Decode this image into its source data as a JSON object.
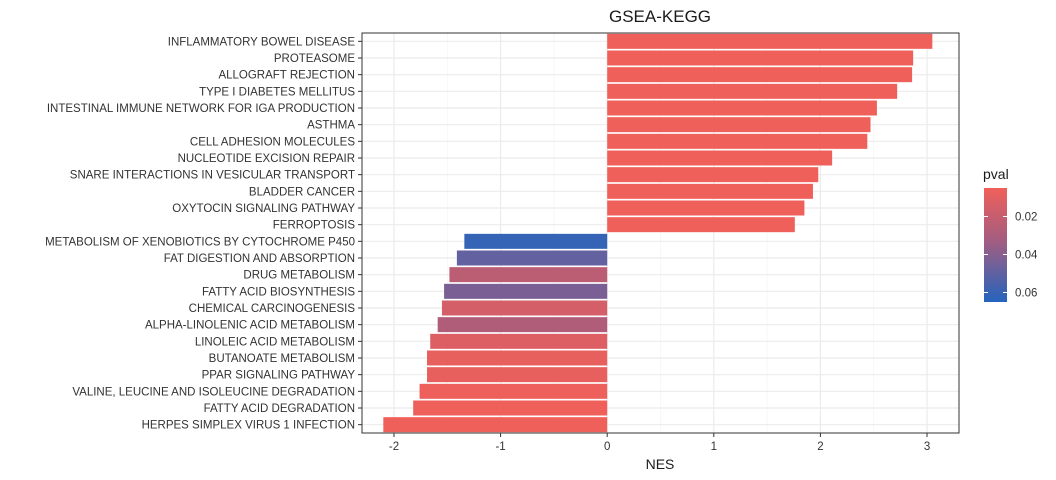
{
  "chart_data": {
    "type": "bar",
    "orientation": "horizontal",
    "title": "GSEA-KEGG",
    "xlabel": "NES",
    "ylabel": "",
    "xlim": [
      -2.3,
      3.3
    ],
    "xticks": [
      -2,
      -1,
      0,
      1,
      2,
      3
    ],
    "grid": true,
    "legend_position": "right",
    "legend": {
      "title": "pval",
      "ticks": [
        0.02,
        0.04,
        0.06
      ],
      "range": [
        0.005,
        0.065
      ],
      "color_low_pval": "#f0605a",
      "color_high_pval": "#2564bd"
    },
    "categories": [
      "INFLAMMATORY BOWEL DISEASE",
      "PROTEASOME",
      "ALLOGRAFT REJECTION",
      "TYPE I DIABETES MELLITUS",
      "INTESTINAL IMMUNE NETWORK FOR IGA PRODUCTION",
      "ASTHMA",
      "CELL ADHESION MOLECULES",
      "NUCLEOTIDE EXCISION REPAIR",
      "SNARE INTERACTIONS IN VESICULAR TRANSPORT",
      "BLADDER CANCER",
      "OXYTOCIN SIGNALING PATHWAY",
      "FERROPTOSIS",
      "METABOLISM OF XENOBIOTICS BY CYTOCHROME P450",
      "FAT DIGESTION AND ABSORPTION",
      "DRUG METABOLISM",
      "FATTY ACID BIOSYNTHESIS",
      "CHEMICAL CARCINOGENESIS",
      "ALPHA-LINOLENIC ACID METABOLISM",
      "LINOLEIC ACID METABOLISM",
      "BUTANOATE METABOLISM",
      "PPAR SIGNALING PATHWAY",
      "VALINE, LEUCINE AND ISOLEUCINE DEGRADATION",
      "FATTY ACID DEGRADATION",
      "HERPES SIMPLEX VIRUS 1 INFECTION"
    ],
    "values": [
      3.05,
      2.87,
      2.86,
      2.72,
      2.53,
      2.47,
      2.44,
      2.11,
      1.98,
      1.93,
      1.85,
      1.76,
      -1.34,
      -1.41,
      -1.48,
      -1.53,
      -1.55,
      -1.59,
      -1.66,
      -1.69,
      -1.69,
      -1.76,
      -1.82,
      -2.1
    ],
    "pval": [
      0.005,
      0.005,
      0.005,
      0.005,
      0.005,
      0.005,
      0.005,
      0.005,
      0.005,
      0.005,
      0.005,
      0.005,
      0.061,
      0.049,
      0.024,
      0.043,
      0.015,
      0.028,
      0.012,
      0.008,
      0.008,
      0.006,
      0.005,
      0.005
    ]
  }
}
